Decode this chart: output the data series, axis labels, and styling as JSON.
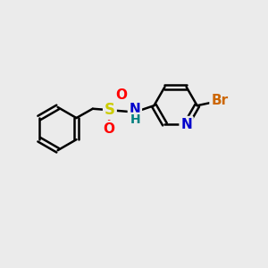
{
  "bg_color": "#ebebeb",
  "bond_color": "#000000",
  "bond_width": 1.8,
  "atom_colors": {
    "S": "#cccc00",
    "O": "#ff0000",
    "N_amine": "#0000cc",
    "N_pyridine": "#0000cc",
    "Br": "#cc6600",
    "H": "#008080",
    "C": "#000000"
  },
  "font_size": 11,
  "figsize": [
    3.0,
    3.0
  ],
  "dpi": 100,
  "xlim": [
    0,
    10
  ],
  "ylim": [
    0,
    10
  ]
}
